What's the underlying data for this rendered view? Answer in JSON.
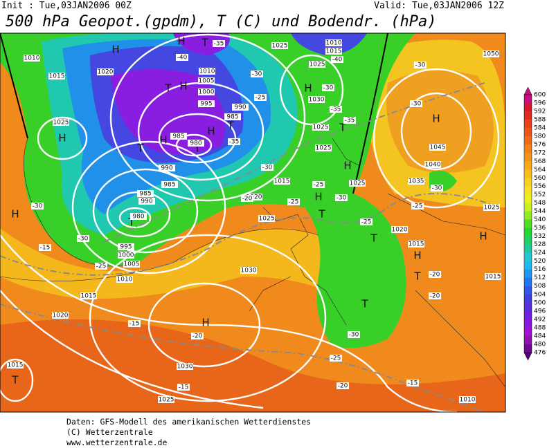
{
  "header": {
    "init": "Init : Tue,03JAN2006 00Z",
    "valid": "Valid: Tue,03JAN2006 12Z",
    "title": "500 hPa Geopot.(gpdm), T (C) und Bodendr. (hPa)"
  },
  "map": {
    "pressure_centers": [
      "H",
      "H",
      "T",
      "H",
      "T",
      "H",
      "H",
      "H",
      "T",
      "H",
      "T",
      "H",
      "T",
      "T",
      "H",
      "H",
      "H",
      "T",
      "T",
      "H",
      "T",
      "T",
      "H",
      "H",
      "T",
      "T",
      "H"
    ],
    "isobar_labels": [
      1010,
      1015,
      1020,
      1025,
      1010,
      1005,
      1000,
      995,
      990,
      985,
      985,
      980,
      990,
      985,
      985,
      990,
      980,
      995,
      1000,
      1005,
      1010,
      1015,
      1020,
      1025,
      1025,
      1010,
      1015,
      1030,
      1025,
      1025,
      1015,
      1020,
      1025,
      1025,
      1020,
      1015,
      1045,
      1040,
      1035,
      1025,
      1015,
      1030,
      1030,
      1025,
      1015,
      1050,
      1010
    ],
    "temperature_labels": [
      -40,
      -35,
      -30,
      -25,
      -35,
      -30,
      -25,
      -20,
      -25,
      -30,
      -25,
      -30,
      -30,
      -25,
      -15,
      -20,
      -15,
      -15,
      -20,
      -15,
      -25,
      -30,
      -20,
      -20,
      -25,
      -30,
      -30,
      -30,
      -35,
      -35,
      -30,
      -40
    ]
  },
  "colorbar": {
    "levels": [
      600,
      596,
      592,
      588,
      584,
      580,
      576,
      572,
      568,
      564,
      560,
      556,
      552,
      548,
      544,
      540,
      536,
      532,
      528,
      524,
      520,
      516,
      512,
      508,
      504,
      500,
      496,
      492,
      488,
      484,
      480,
      476
    ],
    "colors": [
      "#c8107c",
      "#d8182c",
      "#e02a1c",
      "#e8401a",
      "#ec5418",
      "#f06a18",
      "#f48018",
      "#f49418",
      "#f8aa18",
      "#f8be1c",
      "#f8d020",
      "#f8e024",
      "#e8f020",
      "#c8f020",
      "#90ec20",
      "#50e020",
      "#20d830",
      "#20d060",
      "#20c8a0",
      "#20c8d0",
      "#20b8f0",
      "#2098f0",
      "#2078f0",
      "#3058e8",
      "#4040e0",
      "#5830e0",
      "#7020e0",
      "#8818e0",
      "#a010d8",
      "#9010b0",
      "#700890"
    ]
  },
  "footer": {
    "lines": [
      "Daten: GFS-Modell des amerikanischen Wetterdienstes",
      "(C) Wetterzentrale",
      "www.wetterzentrale.de"
    ]
  }
}
